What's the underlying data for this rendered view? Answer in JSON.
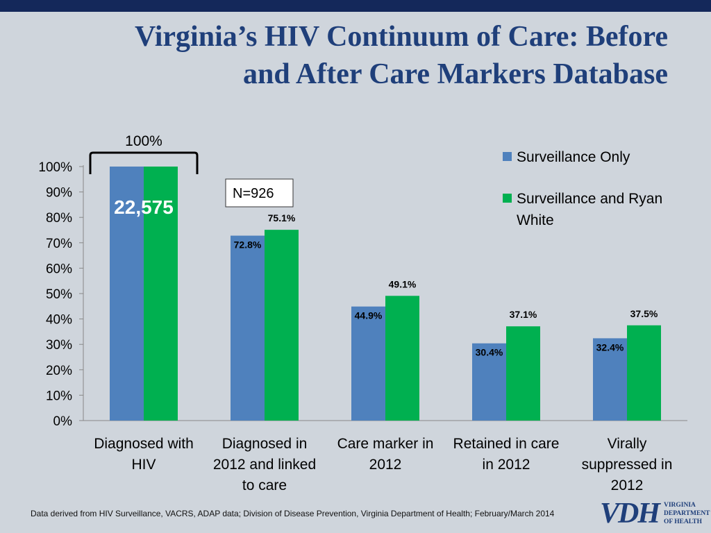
{
  "title_line1": "Virginia’s HIV Continuum of Care: Before",
  "title_line2": "and After Care Markers Database",
  "footer": "Data derived from HIV Surveillance, VACRS, ADAP data; Division of Disease Prevention, Virginia Department of Health; February/March 2014",
  "logo": {
    "mark": "VDH",
    "line1": "VIRGINIA",
    "line2": "DEPARTMENT",
    "line3": "OF HEALTH"
  },
  "chart_data": {
    "type": "bar",
    "categories": [
      [
        "Diagnosed with",
        "HIV"
      ],
      [
        "Diagnosed in",
        "2012 and linked",
        "to care"
      ],
      [
        "Care marker in",
        "2012"
      ],
      [
        "Retained in care",
        "in 2012"
      ],
      [
        "Virally",
        "suppressed in",
        "2012"
      ]
    ],
    "series": [
      {
        "name": "Surveillance Only",
        "color": "#4f81bd",
        "values": [
          100,
          72.8,
          44.9,
          30.4,
          32.4
        ],
        "labels": [
          "",
          "72.8%",
          "44.9%",
          "30.4%",
          "32.4%"
        ]
      },
      {
        "name": "Surveillance and Ryan White",
        "color": "#00b050",
        "values": [
          100,
          75.1,
          49.1,
          37.1,
          37.5
        ],
        "labels": [
          "",
          "75.1%",
          "49.1%",
          "37.1%",
          "37.5%"
        ]
      }
    ],
    "ylim": [
      0,
      100
    ],
    "yticks": [
      "0%",
      "10%",
      "20%",
      "30%",
      "40%",
      "50%",
      "60%",
      "70%",
      "80%",
      "90%",
      "100%"
    ],
    "annotations": {
      "bracket_label": "100%",
      "bar_count": "22,575",
      "n_box": "N=926"
    },
    "legend_position": "right",
    "grid": false
  }
}
